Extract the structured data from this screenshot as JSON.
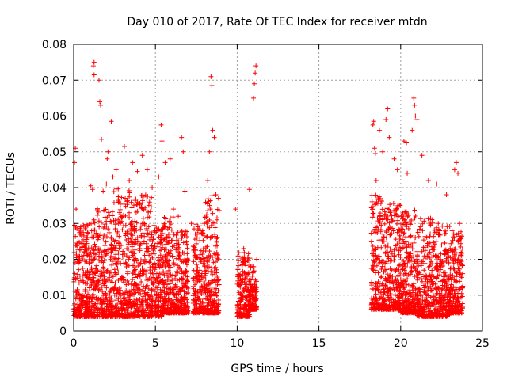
{
  "chart_data": {
    "type": "scatter",
    "title": "Day 010 of 2017, Rate Of TEC Index for receiver mtdn",
    "xlabel": "GPS time / hours",
    "ylabel": "ROTI / TECUs",
    "xlim": [
      0,
      25
    ],
    "ylim": [
      0,
      0.08
    ],
    "xticks": [
      0,
      5,
      10,
      15,
      20,
      25
    ],
    "xtick_labels": [
      "0",
      "5",
      "10",
      "15",
      "20",
      "25"
    ],
    "yticks": [
      0,
      0.01,
      0.02,
      0.03,
      0.04,
      0.05,
      0.06,
      0.07,
      0.08
    ],
    "ytick_labels": [
      "0",
      "0.01",
      "0.02",
      "0.03",
      "0.04",
      "0.05",
      "0.06",
      "0.07",
      "0.08"
    ],
    "grid": true,
    "marker": "+",
    "marker_color": "#ff0000",
    "series": [
      {
        "name": "",
        "points": [
          [
            0.05,
            0.047
          ],
          [
            0.1,
            0.051
          ],
          [
            0.15,
            0.034
          ],
          [
            0.2,
            0.0285
          ],
          [
            0.4,
            0.027
          ],
          [
            0.5,
            0.0245
          ],
          [
            1.05,
            0.0405
          ],
          [
            1.15,
            0.0395
          ],
          [
            1.2,
            0.074
          ],
          [
            1.25,
            0.0715
          ],
          [
            1.25,
            0.075
          ],
          [
            1.55,
            0.07
          ],
          [
            1.6,
            0.064
          ],
          [
            1.65,
            0.063
          ],
          [
            1.7,
            0.0535
          ],
          [
            1.8,
            0.039
          ],
          [
            2.0,
            0.041
          ],
          [
            2.05,
            0.048
          ],
          [
            2.1,
            0.05
          ],
          [
            2.3,
            0.0585
          ],
          [
            2.4,
            0.043
          ],
          [
            2.6,
            0.045
          ],
          [
            3.1,
            0.0515
          ],
          [
            3.4,
            0.042
          ],
          [
            3.6,
            0.047
          ],
          [
            3.9,
            0.0445
          ],
          [
            4.2,
            0.049
          ],
          [
            4.5,
            0.045
          ],
          [
            4.8,
            0.04
          ],
          [
            5.2,
            0.043
          ],
          [
            5.35,
            0.0575
          ],
          [
            5.4,
            0.053
          ],
          [
            5.6,
            0.047
          ],
          [
            5.9,
            0.048
          ],
          [
            6.1,
            0.034
          ],
          [
            6.4,
            0.032
          ],
          [
            6.6,
            0.054
          ],
          [
            6.7,
            0.05
          ],
          [
            6.8,
            0.039
          ],
          [
            7.2,
            0.03
          ],
          [
            7.6,
            0.028
          ],
          [
            8.0,
            0.03
          ],
          [
            8.2,
            0.042
          ],
          [
            8.3,
            0.05
          ],
          [
            8.4,
            0.071
          ],
          [
            8.45,
            0.0685
          ],
          [
            8.5,
            0.056
          ],
          [
            8.6,
            0.054
          ],
          [
            8.7,
            0.038
          ],
          [
            9.9,
            0.034
          ],
          [
            10.4,
            0.023
          ],
          [
            10.75,
            0.0395
          ],
          [
            11.0,
            0.065
          ],
          [
            11.05,
            0.069
          ],
          [
            11.1,
            0.072
          ],
          [
            11.15,
            0.074
          ],
          [
            11.2,
            0.02
          ],
          [
            18.3,
            0.0575
          ],
          [
            18.35,
            0.0585
          ],
          [
            18.4,
            0.051
          ],
          [
            18.45,
            0.0495
          ],
          [
            18.5,
            0.042
          ],
          [
            18.7,
            0.056
          ],
          [
            18.9,
            0.05
          ],
          [
            19.1,
            0.059
          ],
          [
            19.2,
            0.062
          ],
          [
            19.3,
            0.054
          ],
          [
            19.6,
            0.048
          ],
          [
            19.8,
            0.045
          ],
          [
            20.2,
            0.053
          ],
          [
            20.35,
            0.0525
          ],
          [
            20.4,
            0.044
          ],
          [
            20.7,
            0.056
          ],
          [
            20.8,
            0.065
          ],
          [
            20.85,
            0.063
          ],
          [
            20.9,
            0.06
          ],
          [
            21.0,
            0.059
          ],
          [
            21.3,
            0.049
          ],
          [
            21.7,
            0.042
          ],
          [
            22.2,
            0.041
          ],
          [
            22.8,
            0.038
          ],
          [
            23.3,
            0.045
          ],
          [
            23.4,
            0.047
          ],
          [
            23.5,
            0.044
          ],
          [
            23.6,
            0.03
          ],
          [
            23.7,
            0.022
          ]
        ]
      }
    ],
    "dense_clusters": [
      {
        "x": [
          0.0,
          1.2
        ],
        "y_low": 0.004,
        "y_high": 0.03
      },
      {
        "x": [
          1.2,
          2.4
        ],
        "y_low": 0.004,
        "y_high": 0.036
      },
      {
        "x": [
          2.4,
          3.6
        ],
        "y_low": 0.004,
        "y_high": 0.04
      },
      {
        "x": [
          3.6,
          4.8
        ],
        "y_low": 0.004,
        "y_high": 0.038
      },
      {
        "x": [
          4.8,
          5.4
        ],
        "y_low": 0.004,
        "y_high": 0.03
      },
      {
        "x": [
          5.4,
          6.2
        ],
        "y_low": 0.005,
        "y_high": 0.032
      },
      {
        "x": [
          6.2,
          7.0
        ],
        "y_low": 0.005,
        "y_high": 0.028
      },
      {
        "x": [
          7.3,
          8.0
        ],
        "y_low": 0.005,
        "y_high": 0.03
      },
      {
        "x": [
          8.0,
          8.9
        ],
        "y_low": 0.005,
        "y_high": 0.038
      },
      {
        "x": [
          10.0,
          10.8
        ],
        "y_low": 0.004,
        "y_high": 0.022
      },
      {
        "x": [
          10.8,
          11.2
        ],
        "y_low": 0.006,
        "y_high": 0.018
      },
      {
        "x": [
          18.2,
          19.0
        ],
        "y_low": 0.006,
        "y_high": 0.038
      },
      {
        "x": [
          19.0,
          20.0
        ],
        "y_low": 0.006,
        "y_high": 0.036
      },
      {
        "x": [
          20.0,
          21.0
        ],
        "y_low": 0.005,
        "y_high": 0.034
      },
      {
        "x": [
          21.0,
          22.0
        ],
        "y_low": 0.004,
        "y_high": 0.032
      },
      {
        "x": [
          22.0,
          23.0
        ],
        "y_low": 0.004,
        "y_high": 0.03
      },
      {
        "x": [
          23.0,
          23.8
        ],
        "y_low": 0.005,
        "y_high": 0.028
      }
    ]
  }
}
